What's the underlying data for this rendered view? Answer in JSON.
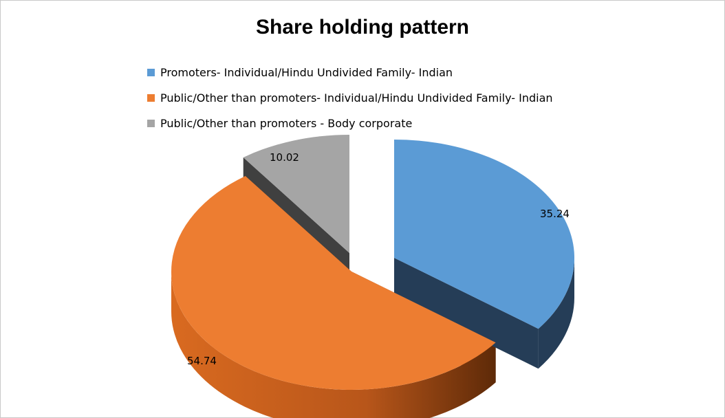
{
  "chart_data": {
    "type": "pie",
    "title": "Share holding pattern",
    "legend_position": "top",
    "slices": [
      {
        "label": "Promoters- Individual/Hindu Undivided Family- Indian",
        "value": 35.24,
        "value_label": "35.24",
        "color": "#5b9bd5",
        "side_color": "#253d57"
      },
      {
        "label": "Public/Other than promoters- Individual/Hindu Undivided Family- Indian",
        "value": 54.74,
        "value_label": "54.74",
        "color": "#ed7d31",
        "side_color": "#7a3a10"
      },
      {
        "label": "Public/Other than promoters - Body corporate",
        "value": 10.02,
        "value_label": "10.02",
        "color": "#a5a5a5",
        "side_color": "#404040"
      }
    ]
  }
}
